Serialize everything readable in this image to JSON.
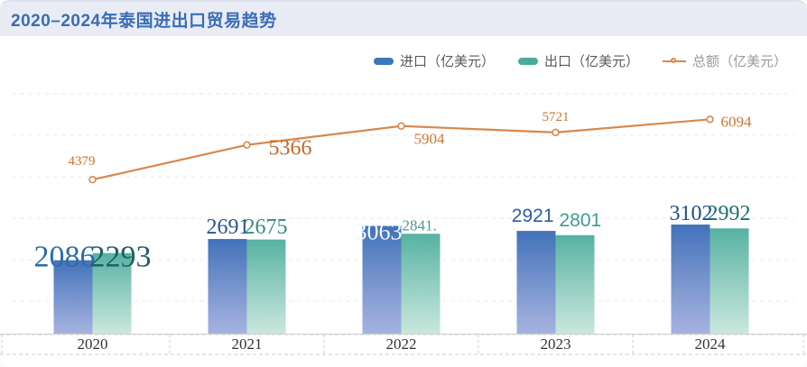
{
  "header": {
    "title": "2020–2024年泰国进出口贸易趋势"
  },
  "legend": [
    {
      "label": "进口（亿美元）",
      "type": "bar",
      "color": "#3a78b8",
      "text_color": "#5a5a5a"
    },
    {
      "label": "出口（亿美元）",
      "type": "bar",
      "color": "#4aab9b",
      "text_color": "#5a5a5a"
    },
    {
      "label": "总额（亿美元）",
      "type": "line",
      "color": "#d8884d",
      "text_color": "#9a9a9a"
    }
  ],
  "chart_data": {
    "type": "bar",
    "title": "2020-2024年泰国进出口贸易趋势",
    "categories": [
      "2020",
      "2021",
      "2022",
      "2023",
      "2024"
    ],
    "series": [
      {
        "name": "进口（亿美元）",
        "type": "bar",
        "values": [
          2086,
          2691,
          3063,
          2921,
          3102
        ],
        "labels": [
          "2086",
          "2691",
          "3063",
          "2921",
          "3102"
        ],
        "color_top": "#3a6cb6",
        "color_bottom": "#9aa8dc"
      },
      {
        "name": "出口（亿美元）",
        "type": "bar",
        "values": [
          2293,
          2675,
          2841,
          2801,
          2992
        ],
        "labels": [
          "2293",
          "2675",
          "2841.",
          "2801",
          "2992"
        ],
        "color_top": "#4fae9e",
        "color_bottom": "#c2e4d8"
      },
      {
        "name": "总额（亿美元）",
        "type": "line",
        "values": [
          4379,
          5366,
          5904,
          5721,
          6094
        ],
        "labels": [
          "4379",
          "5366",
          "5904",
          "5721",
          "6094"
        ],
        "color": "#d8884d"
      }
    ],
    "xlabel": "",
    "ylabel": "",
    "ylim": [
      0,
      7200
    ],
    "grid": true,
    "legend_position": "top-right",
    "label_colors": {
      "import_values": [
        "#2f6ba8",
        "#27568a",
        "#f4f7fa",
        "#2d5da8",
        "#1e4e8c"
      ],
      "export_values": [
        "#215f68",
        "#38897f",
        "#4a9a94",
        "#3f9b94",
        "#1d6e6e"
      ],
      "total_values": [
        "#c8732e",
        "#c06a28",
        "#cd7733",
        "#cd7733",
        "#cd7733"
      ]
    }
  }
}
